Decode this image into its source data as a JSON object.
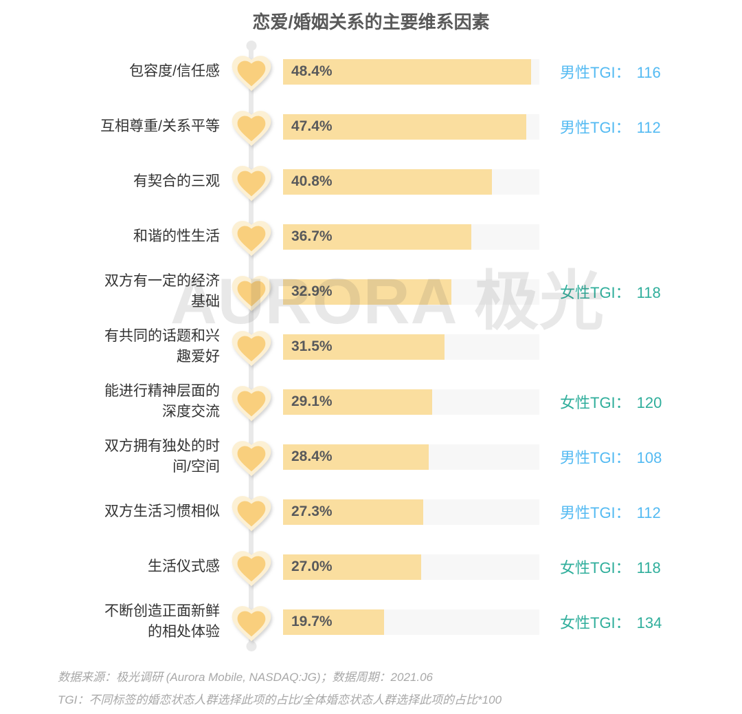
{
  "title": "恋爱/婚姻关系的主要维系因素",
  "watermark": "AURORA 极光",
  "footer": {
    "line1": "数据来源：极光调研 (Aurora Mobile, NASDAQ:JG)；数据周期：2021.06",
    "line2": "TGI：不同标签的婚恋状态人群选择此项的占比/全体婚恋状态人群选择此项的占比*100"
  },
  "colors": {
    "bar": "#FADE9F",
    "track": "#F7F7F7",
    "heartInner": "#F9CF7D",
    "heartOuter": "#FCF0D4",
    "line": "#E9E9E9",
    "male": "#53BAF2",
    "female": "#2FAE9B",
    "title": "#595959",
    "label": "#333333",
    "pct": "#58595B",
    "footer": "#A8A8A8",
    "watermark": "#4A4A4A"
  },
  "chart_data": {
    "type": "bar",
    "orientation": "horizontal",
    "title": "恋爱/婚姻关系的主要维系因素",
    "xlabel": "",
    "ylabel": "",
    "xlim": [
      0,
      50
    ],
    "unit": "%",
    "grid": false,
    "legend": false,
    "categories": [
      "包容度/信任感",
      "互相尊重/关系平等",
      "有契合的三观",
      "和谐的性生活",
      "双方有一定的经济基础",
      "有共同的话题和兴趣爱好",
      "能进行精神层面的深度交流",
      "双方拥有独处的时间/空间",
      "双方生活习惯相似",
      "生活仪式感",
      "不断创造正面新鲜的相处体验"
    ],
    "values": [
      48.4,
      47.4,
      40.8,
      36.7,
      32.9,
      31.5,
      29.1,
      28.4,
      27.3,
      27.0,
      19.7
    ],
    "rows": [
      {
        "label": "包容度/信任感",
        "label_lines": [
          "包容度/信任感"
        ],
        "value": 48.4,
        "value_label": "48.4%",
        "tgi": {
          "gender": "male",
          "label": "男性TGI：",
          "value": "116"
        }
      },
      {
        "label": "互相尊重/关系平等",
        "label_lines": [
          "互相尊重/关系平等"
        ],
        "value": 47.4,
        "value_label": "47.4%",
        "tgi": {
          "gender": "male",
          "label": "男性TGI：",
          "value": "112"
        }
      },
      {
        "label": "有契合的三观",
        "label_lines": [
          "有契合的三观"
        ],
        "value": 40.8,
        "value_label": "40.8%",
        "tgi": null
      },
      {
        "label": "和谐的性生活",
        "label_lines": [
          "和谐的性生活"
        ],
        "value": 36.7,
        "value_label": "36.7%",
        "tgi": null
      },
      {
        "label": "双方有一定的经济基础",
        "label_lines": [
          "双方有一定的经济",
          "基础"
        ],
        "value": 32.9,
        "value_label": "32.9%",
        "tgi": {
          "gender": "female",
          "label": "女性TGI：",
          "value": "118"
        }
      },
      {
        "label": "有共同的话题和兴趣爱好",
        "label_lines": [
          "有共同的话题和兴",
          "趣爱好"
        ],
        "value": 31.5,
        "value_label": "31.5%",
        "tgi": null
      },
      {
        "label": "能进行精神层面的深度交流",
        "label_lines": [
          "能进行精神层面的",
          "深度交流"
        ],
        "value": 29.1,
        "value_label": "29.1%",
        "tgi": {
          "gender": "female",
          "label": "女性TGI：",
          "value": "120"
        }
      },
      {
        "label": "双方拥有独处的时间/空间",
        "label_lines": [
          "双方拥有独处的时",
          "间/空间"
        ],
        "value": 28.4,
        "value_label": "28.4%",
        "tgi": {
          "gender": "male",
          "label": "男性TGI：",
          "value": "108"
        }
      },
      {
        "label": "双方生活习惯相似",
        "label_lines": [
          "双方生活习惯相似"
        ],
        "value": 27.3,
        "value_label": "27.3%",
        "tgi": {
          "gender": "male",
          "label": "男性TGI：",
          "value": "112"
        }
      },
      {
        "label": "生活仪式感",
        "label_lines": [
          "生活仪式感"
        ],
        "value": 27.0,
        "value_label": "27.0%",
        "tgi": {
          "gender": "female",
          "label": "女性TGI：",
          "value": "118"
        }
      },
      {
        "label": "不断创造正面新鲜的相处体验",
        "label_lines": [
          "不断创造正面新鲜",
          "的相处体验"
        ],
        "value": 19.7,
        "value_label": "19.7%",
        "tgi": {
          "gender": "female",
          "label": "女性TGI：",
          "value": "134"
        }
      }
    ]
  }
}
